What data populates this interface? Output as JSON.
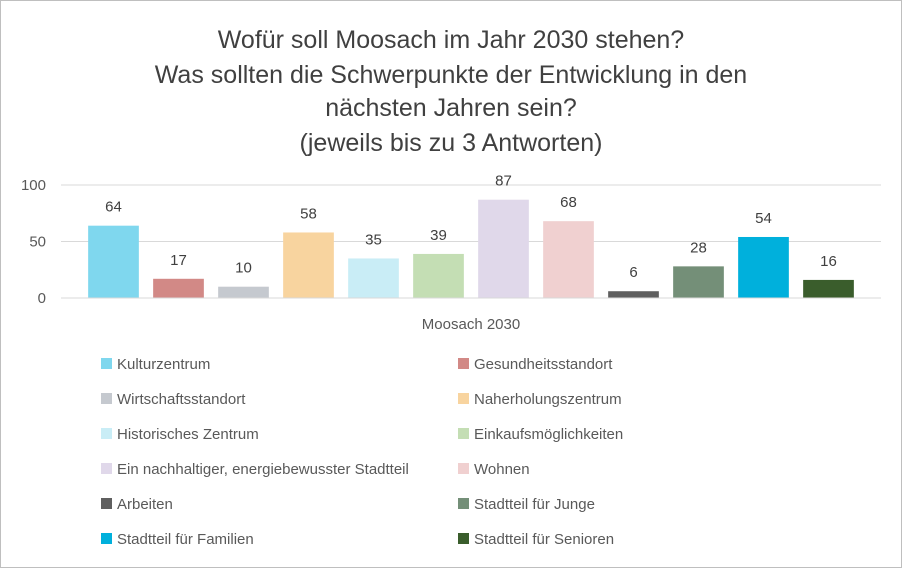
{
  "chart_data": {
    "type": "bar",
    "title_lines": [
      "Wofür soll Moosach im Jahr 2030 stehen?",
      "Was sollten die Schwerpunkte der Entwicklung in den",
      "nächsten Jahren sein?",
      "(jeweils bis zu 3 Antworten)"
    ],
    "categories": [
      "Moosach 2030"
    ],
    "ylim": [
      0,
      100
    ],
    "yticks": [
      0,
      50,
      100
    ],
    "grid": true,
    "legend_position": "bottom",
    "series": [
      {
        "name": "Kulturzentrum",
        "values": [
          64
        ],
        "color": "#7fd7ee"
      },
      {
        "name": "Gesundheitsstandort",
        "values": [
          17
        ],
        "color": "#d28986"
      },
      {
        "name": "Wirtschaftsstandort",
        "values": [
          10
        ],
        "color": "#c5c9cf"
      },
      {
        "name": "Naherholungszentrum",
        "values": [
          58
        ],
        "color": "#f8d49f"
      },
      {
        "name": "Historisches Zentrum",
        "values": [
          35
        ],
        "color": "#c9edf6"
      },
      {
        "name": "Einkaufsmöglichkeiten",
        "values": [
          39
        ],
        "color": "#c4deb4"
      },
      {
        "name": "Ein nachhaltiger, energiebewusster Stadtteil",
        "values": [
          87
        ],
        "color": "#e0d8ea"
      },
      {
        "name": "Wohnen",
        "values": [
          68
        ],
        "color": "#f0d0d0"
      },
      {
        "name": "Arbeiten",
        "values": [
          6
        ],
        "color": "#5f5f5f"
      },
      {
        "name": "Stadtteil für Junge",
        "values": [
          28
        ],
        "color": "#748f78"
      },
      {
        "name": "Stadtteil für Familien",
        "values": [
          54
        ],
        "color": "#00b0dc"
      },
      {
        "name": "Stadtteil für Senioren",
        "values": [
          16
        ],
        "color": "#3a5d2c"
      }
    ]
  }
}
